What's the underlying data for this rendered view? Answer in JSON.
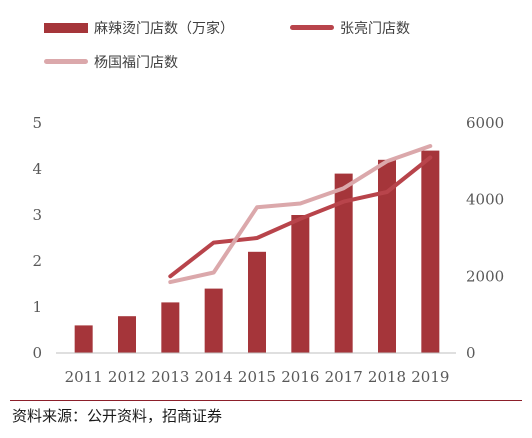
{
  "chart_data": {
    "type": "bar+line",
    "categories": [
      "2011",
      "2012",
      "2013",
      "2014",
      "2015",
      "2016",
      "2017",
      "2018",
      "2019"
    ],
    "series": [
      {
        "name": "麻辣烫门店数（万家）",
        "kind": "bar",
        "axis": "left",
        "color": "#a5353a",
        "values": [
          0.6,
          0.8,
          1.1,
          1.4,
          2.2,
          3.0,
          3.9,
          4.2,
          4.4
        ]
      },
      {
        "name": "张亮门店数",
        "kind": "line",
        "axis": "right",
        "color": "#b8444b",
        "values": [
          null,
          null,
          2000,
          2880,
          3000,
          3500,
          3950,
          4200,
          5100
        ]
      },
      {
        "name": "杨国福门店数",
        "kind": "line",
        "axis": "right",
        "color": "#dba8ab",
        "values": [
          null,
          null,
          1850,
          2100,
          3800,
          3900,
          4300,
          5000,
          5400
        ]
      }
    ],
    "y_left": {
      "min": 0,
      "max": 5,
      "ticks": [
        "0",
        "1",
        "2",
        "3",
        "4",
        "5"
      ]
    },
    "y_right": {
      "min": 0,
      "max": 6000,
      "ticks": [
        "0",
        "2000",
        "4000",
        "6000"
      ]
    },
    "grid": false,
    "legend_position": "top-left"
  },
  "source": "资料来源：公开资料，招商证券"
}
